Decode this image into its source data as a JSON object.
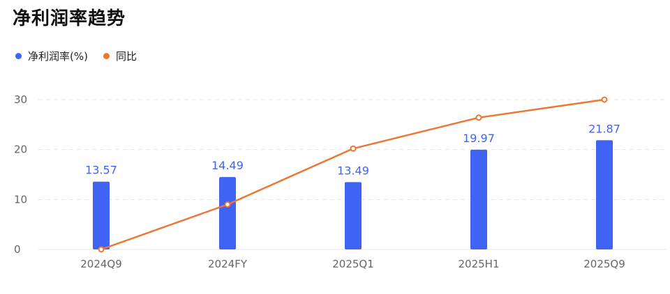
{
  "title": "净利润率趋势",
  "legend": [
    {
      "label": "净利润率(%)",
      "color": "#3f63f3"
    },
    {
      "label": "同比",
      "color": "#ec7633"
    }
  ],
  "chart_data": {
    "type": "bar",
    "title": "净利润率趋势",
    "categories": [
      "2024Q9",
      "2024FY",
      "2025Q1",
      "2025H1",
      "2025Q9"
    ],
    "yticks": [
      "0",
      "10",
      "20",
      "30"
    ],
    "ylim": [
      0,
      30
    ],
    "grid": true,
    "legend_position": "top-left",
    "series": [
      {
        "name": "净利润率(%)",
        "type": "bar",
        "color": "#3f63f3",
        "values": [
          13.57,
          14.49,
          13.49,
          19.97,
          21.87
        ],
        "labels": [
          "13.57",
          "14.49",
          "13.49",
          "19.97",
          "21.87"
        ]
      },
      {
        "name": "同比",
        "type": "line",
        "color": "#ec7633",
        "values": [
          0,
          9,
          20.2,
          26.4,
          30
        ]
      }
    ]
  }
}
